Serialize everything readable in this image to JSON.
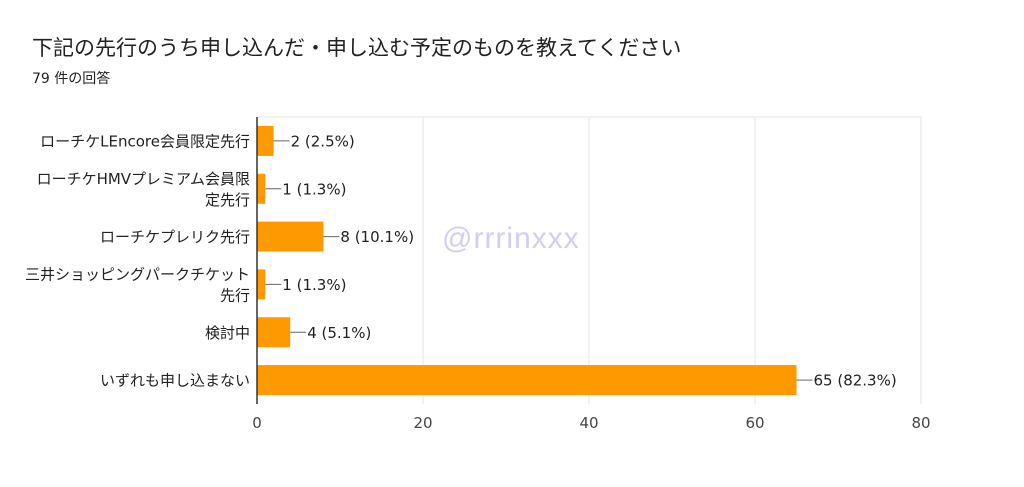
{
  "title": "下記の先行のうち申し込んだ・申し込む予定のものを教えてください",
  "subtitle": "79 件の回答",
  "watermark": "@rrrinxxx",
  "colors": {
    "bar": "#ff9900",
    "grid": "#e6e6e6",
    "axis": "#333333"
  },
  "chart_data": {
    "type": "bar",
    "orientation": "horizontal",
    "categories": [
      [
        "ローチケLEncore会員限定先行"
      ],
      [
        "ローチケHMVプレミアム会員限",
        "定先行"
      ],
      [
        "ローチケプレリク先行"
      ],
      [
        "三井ショッピングパークチケット",
        "先行"
      ],
      [
        "検討中"
      ],
      [
        "いずれも申し込まない"
      ]
    ],
    "values": [
      2,
      1,
      8,
      1,
      4,
      65
    ],
    "labels": [
      "2 (2.5%)",
      "1 (1.3%)",
      "8 (10.1%)",
      "1 (1.3%)",
      "4 (5.1%)",
      "65 (82.3%)"
    ],
    "xlim": [
      0,
      80
    ],
    "xticks": [
      0,
      20,
      40,
      60,
      80
    ],
    "grid": true
  }
}
